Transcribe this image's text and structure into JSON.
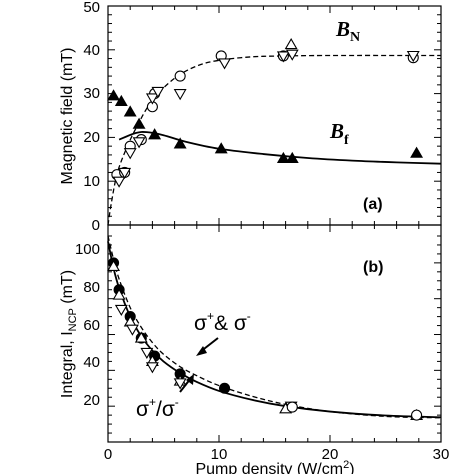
{
  "chart_data": [
    {
      "panel": "(a)",
      "type": "scatter",
      "ylabel": "Magnetic field (mT)",
      "xlim": [
        0,
        30
      ],
      "ylim": [
        0,
        50
      ],
      "yticks": [
        "0",
        "10",
        "20",
        "30",
        "40",
        "50"
      ],
      "labels": {
        "BN_main": "B",
        "BN_sub": "N",
        "Bf_main": "B",
        "Bf_sub": "f"
      },
      "series": [
        {
          "label_ref": "BN",
          "marker": "open-circle",
          "points": [
            [
              0.8,
              11.5
            ],
            [
              1.5,
              12
            ],
            [
              2,
              18
            ],
            [
              3,
              19.5
            ],
            [
              4,
              27
            ],
            [
              4.2,
              30
            ],
            [
              6.5,
              34
            ],
            [
              10.2,
              38.6
            ],
            [
              15.8,
              38.6
            ],
            [
              27.5,
              38.2
            ]
          ]
        },
        {
          "label_ref": "BN",
          "marker": "open-down-triangle",
          "points": [
            [
              1,
              10
            ],
            [
              1.5,
              12
            ],
            [
              2,
              16.5
            ],
            [
              2.8,
              19
            ],
            [
              4,
              29
            ],
            [
              4.5,
              30.5
            ],
            [
              6.5,
              30
            ],
            [
              10.5,
              37
            ],
            [
              15.8,
              38.6
            ],
            [
              16.6,
              39
            ],
            [
              27.5,
              38.7
            ]
          ]
        },
        {
          "label_ref": "BN",
          "marker": "open-up-triangle",
          "points": [
            [
              16.5,
              41.2
            ]
          ]
        },
        {
          "label_ref": "Bf",
          "marker": "filled-up-triangle",
          "points": [
            [
              0.5,
              29.5
            ],
            [
              1.2,
              28.2
            ],
            [
              2,
              25.8
            ],
            [
              2.8,
              23
            ],
            [
              4.2,
              20.6
            ],
            [
              6.5,
              18.5
            ],
            [
              10.2,
              17.4
            ],
            [
              15.8,
              15.2
            ],
            [
              16.6,
              15.2
            ],
            [
              27.8,
              16.4
            ]
          ]
        }
      ],
      "fits": [
        {
          "label_ref": "BN",
          "style": "dashed",
          "points": [
            [
              0,
              0
            ],
            [
              0.3,
              5
            ],
            [
              0.8,
              11.5
            ],
            [
              1.5,
              16.5
            ],
            [
              2.5,
              22
            ],
            [
              4,
              28.5
            ],
            [
              6,
              33.5
            ],
            [
              8,
              36.3
            ],
            [
              10,
              37.6
            ],
            [
              13,
              38.4
            ],
            [
              16,
              38.6
            ],
            [
              20,
              38.7
            ],
            [
              30,
              38.7
            ]
          ]
        },
        {
          "label_ref": "Bf",
          "style": "solid",
          "points": [
            [
              1,
              19.5
            ],
            [
              2.5,
              21
            ],
            [
              3.5,
              21.2
            ],
            [
              5,
              20.5
            ],
            [
              7,
              19
            ],
            [
              10,
              17.4
            ],
            [
              14,
              16.2
            ],
            [
              18,
              15.3
            ],
            [
              22,
              14.7
            ],
            [
              26,
              14.3
            ],
            [
              30,
              14
            ]
          ]
        }
      ]
    },
    {
      "panel": "(b)",
      "type": "scatter",
      "xlabel_main": "Pump density (W/cm",
      "xlabel_sup": "2",
      "xlabel_end": ")",
      "ylabel_main": "Integral, I",
      "ylabel_sub": "NCP",
      "ylabel_end": " (mT)",
      "xlim": [
        0,
        30
      ],
      "ylim": [
        0,
        115
      ],
      "xticks": [
        "0",
        "10",
        "20",
        "30"
      ],
      "yticks": [
        "0",
        "20",
        "40",
        "60",
        "80",
        "100"
      ],
      "labels": {
        "both_a": "σ",
        "both_a_sup": "+",
        "both_mid": "& ",
        "both_b": "σ",
        "both_b_sup": "-",
        "ratio_a": "σ",
        "ratio_a_sup": "+",
        "ratio_mid": "/",
        "ratio_b": "σ",
        "ratio_b_sup": "-"
      },
      "series": [
        {
          "label_ref": "both",
          "marker": "filled-circle",
          "points": [
            [
              0.5,
              100
            ],
            [
              1,
              85
            ],
            [
              2,
              70
            ],
            [
              3,
              58
            ],
            [
              4.2,
              48
            ],
            [
              6.5,
              38
            ],
            [
              10.5,
              30
            ]
          ]
        },
        {
          "label_ref": "ratio",
          "marker": "open-up-triangle",
          "points": [
            [
              0.5,
              98
            ],
            [
              1,
              82
            ],
            [
              2,
              67
            ],
            [
              3,
              58
            ],
            [
              4,
              45
            ],
            [
              6.5,
              34
            ],
            [
              16,
              18.5
            ],
            [
              27.8,
              14.8
            ]
          ]
        },
        {
          "label_ref": "ratio",
          "marker": "open-down-triangle",
          "points": [
            [
              1.2,
              74
            ],
            [
              2.2,
              63
            ],
            [
              3.5,
              50
            ],
            [
              4,
              42
            ],
            [
              6.5,
              33
            ],
            [
              16.5,
              20
            ]
          ]
        },
        {
          "label_ref": "both",
          "marker": "open-circle",
          "points": [
            [
              16.6,
              19.5
            ],
            [
              27.8,
              15
            ]
          ]
        }
      ],
      "fits": [
        {
          "label_ref": "both",
          "style": "dashed",
          "points": [
            [
              0,
              115
            ],
            [
              0.5,
              102
            ],
            [
              1,
              91
            ],
            [
              2,
              75
            ],
            [
              3,
              64
            ],
            [
              4,
              55.5
            ],
            [
              5,
              49
            ],
            [
              6.5,
              42
            ],
            [
              8,
              37
            ],
            [
              10,
              31.5
            ],
            [
              13,
              25.5
            ],
            [
              16,
              21
            ],
            [
              20,
              17
            ],
            [
              25,
              14.3
            ],
            [
              30,
              13.5
            ]
          ]
        },
        {
          "label_ref": "ratio",
          "style": "solid",
          "points": [
            [
              0,
              112
            ],
            [
              0.5,
              97
            ],
            [
              1,
              86
            ],
            [
              2,
              70
            ],
            [
              3,
              59
            ],
            [
              4,
              51
            ],
            [
              5,
              45
            ],
            [
              6.5,
              38.5
            ],
            [
              8,
              33.5
            ],
            [
              10,
              28.5
            ],
            [
              13,
              23.5
            ],
            [
              16,
              20
            ],
            [
              20,
              17
            ],
            [
              25,
              14.8
            ],
            [
              30,
              13.8
            ]
          ]
        }
      ]
    }
  ]
}
